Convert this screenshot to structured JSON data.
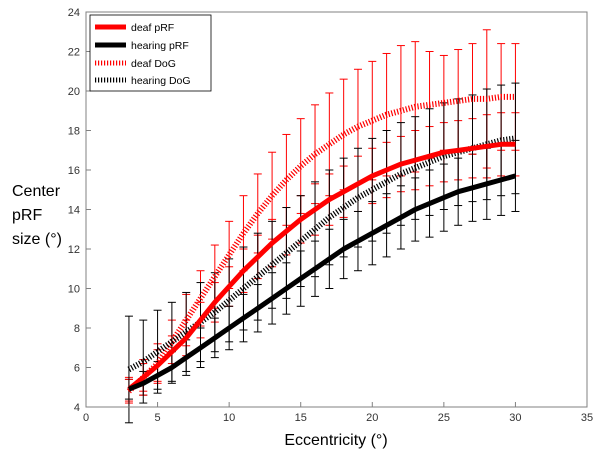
{
  "chart_data": {
    "type": "line",
    "xlabel": "Eccentricity (°)",
    "ylabel_lines": [
      "Center",
      "pRF",
      "size (°)"
    ],
    "xlim": [
      0,
      35
    ],
    "ylim": [
      4,
      24
    ],
    "xticks": [
      0,
      5,
      10,
      15,
      20,
      25,
      30,
      35
    ],
    "yticks": [
      4,
      6,
      8,
      10,
      12,
      14,
      16,
      18,
      20,
      22,
      24
    ],
    "grid": false,
    "legend_position": "top-left",
    "x": [
      3,
      4,
      5,
      6,
      7,
      8,
      9,
      10,
      11,
      12,
      13,
      14,
      15,
      16,
      17,
      18,
      19,
      20,
      21,
      22,
      23,
      24,
      25,
      26,
      27,
      28,
      29,
      30
    ],
    "series": [
      {
        "name": "deaf pRF",
        "color": "#ff0000",
        "style": "solid",
        "values": [
          4.9,
          5.5,
          6.1,
          6.8,
          7.5,
          8.4,
          9.3,
          10.1,
          10.9,
          11.6,
          12.3,
          12.9,
          13.5,
          14.0,
          14.5,
          14.9,
          15.3,
          15.7,
          16.0,
          16.3,
          16.5,
          16.7,
          16.9,
          17.0,
          17.1,
          17.2,
          17.3,
          17.3
        ],
        "error": [
          0.6,
          0.7,
          0.8,
          0.8,
          0.9,
          0.9,
          1.0,
          1.0,
          1.1,
          1.1,
          1.2,
          1.2,
          1.2,
          1.3,
          1.3,
          1.3,
          1.4,
          1.4,
          1.4,
          1.4,
          1.5,
          1.5,
          1.5,
          1.5,
          1.5,
          1.6,
          1.6,
          1.6
        ]
      },
      {
        "name": "hearing pRF",
        "color": "#000000",
        "style": "solid",
        "values": [
          4.9,
          5.2,
          5.6,
          6.0,
          6.5,
          7.0,
          7.5,
          8.0,
          8.5,
          9.0,
          9.5,
          10.0,
          10.5,
          11.0,
          11.5,
          12.0,
          12.4,
          12.8,
          13.2,
          13.6,
          14.0,
          14.3,
          14.6,
          14.9,
          15.1,
          15.3,
          15.5,
          15.7
        ],
        "error": [
          0.5,
          0.6,
          0.7,
          0.8,
          0.9,
          1.0,
          1.0,
          1.1,
          1.2,
          1.2,
          1.3,
          1.3,
          1.4,
          1.4,
          1.5,
          1.5,
          1.5,
          1.6,
          1.6,
          1.6,
          1.6,
          1.7,
          1.7,
          1.7,
          1.7,
          1.8,
          1.8,
          1.8
        ]
      },
      {
        "name": "deaf DoG",
        "color": "#ff0000",
        "style": "dotted",
        "values": [
          4.8,
          5.5,
          6.2,
          7.3,
          8.4,
          9.5,
          10.6,
          11.7,
          12.8,
          13.8,
          14.7,
          15.5,
          16.2,
          16.8,
          17.3,
          17.8,
          18.2,
          18.5,
          18.8,
          19.0,
          19.2,
          19.3,
          19.4,
          19.5,
          19.6,
          19.6,
          19.7,
          19.7
        ],
        "error": [
          0.6,
          0.9,
          1.0,
          1.1,
          1.3,
          1.4,
          1.6,
          1.7,
          1.9,
          2.0,
          2.2,
          2.3,
          2.4,
          2.5,
          2.6,
          2.8,
          2.9,
          3.0,
          3.1,
          3.3,
          3.3,
          2.7,
          2.4,
          2.6,
          2.8,
          3.5,
          2.7,
          2.7
        ]
      },
      {
        "name": "hearing DoG",
        "color": "#000000",
        "style": "dotted",
        "values": [
          5.9,
          6.3,
          6.8,
          7.3,
          7.8,
          8.3,
          8.8,
          9.4,
          10.0,
          10.6,
          11.2,
          11.8,
          12.4,
          13.0,
          13.6,
          14.1,
          14.6,
          15.0,
          15.4,
          15.8,
          16.1,
          16.4,
          16.7,
          16.9,
          17.1,
          17.3,
          17.5,
          17.6
        ],
        "error": [
          2.7,
          2.1,
          2.1,
          2.0,
          2.0,
          2.0,
          2.0,
          2.1,
          2.1,
          2.2,
          2.2,
          2.3,
          2.3,
          2.4,
          2.4,
          2.5,
          2.5,
          2.6,
          2.6,
          2.6,
          2.6,
          2.7,
          2.7,
          2.7,
          2.7,
          2.8,
          2.8,
          2.8
        ]
      }
    ]
  }
}
